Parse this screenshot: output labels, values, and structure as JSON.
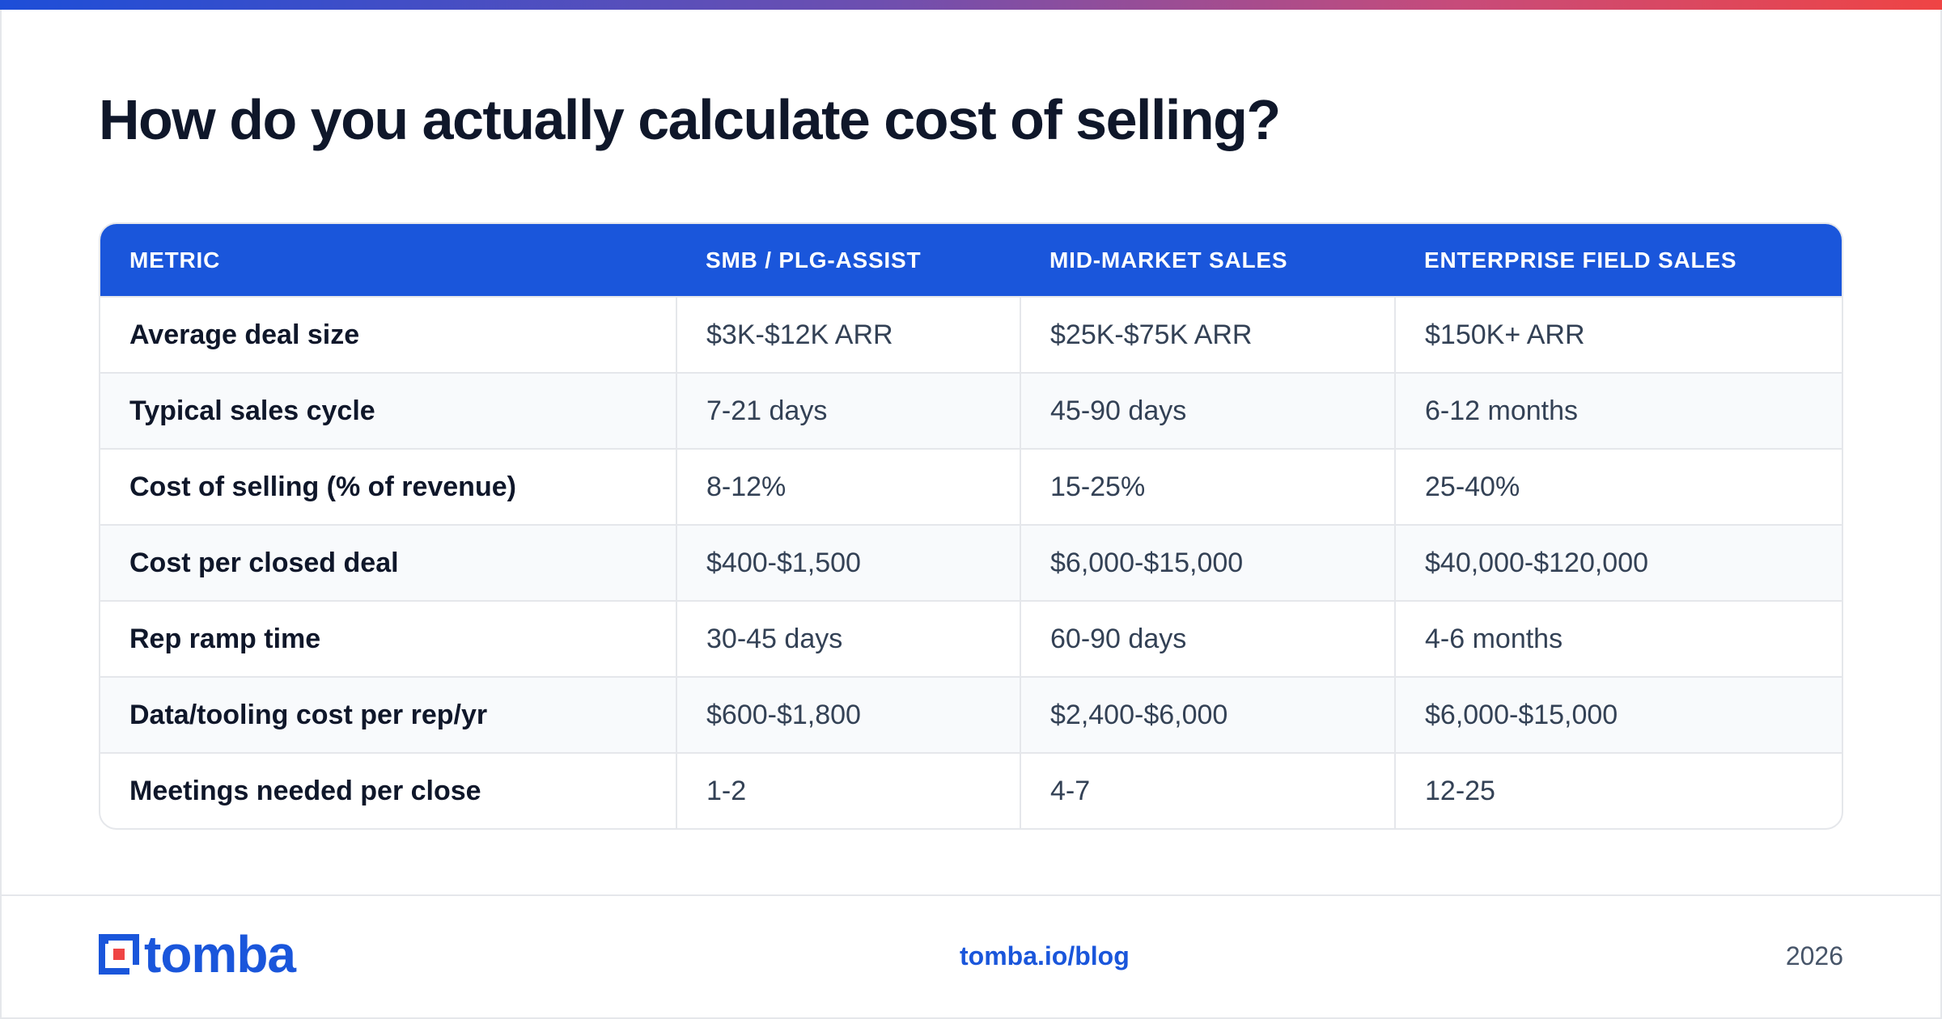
{
  "title": "How do you actually calculate cost of selling?",
  "colors": {
    "accent": "#1a56db",
    "title": "#0f172a",
    "text": "#334155",
    "border": "#e5e7eb",
    "alt_row": "#f8fafc"
  },
  "table": {
    "headers": [
      "METRIC",
      "SMB / PLG-ASSIST",
      "MID-MARKET SALES",
      "ENTERPRISE FIELD SALES"
    ],
    "rows": [
      [
        "Average deal size",
        "$3K-$12K ARR",
        "$25K-$75K ARR",
        "$150K+ ARR"
      ],
      [
        "Typical sales cycle",
        "7-21 days",
        "45-90 days",
        "6-12 months"
      ],
      [
        "Cost of selling (% of revenue)",
        "8-12%",
        "15-25%",
        "25-40%"
      ],
      [
        "Cost per closed deal",
        "$400-$1,500",
        "$6,000-$15,000",
        "$40,000-$120,000"
      ],
      [
        "Rep ramp time",
        "30-45 days",
        "60-90 days",
        "4-6 months"
      ],
      [
        "Data/tooling cost per rep/yr",
        "$600-$1,800",
        "$2,400-$6,000",
        "$6,000-$15,000"
      ],
      [
        "Meetings needed per close",
        "1-2",
        "4-7",
        "12-25"
      ]
    ]
  },
  "footer": {
    "logo_icon": "tomba-logo-icon",
    "logo_text": "tomba",
    "link": "tomba.io/blog",
    "year": "2026"
  }
}
